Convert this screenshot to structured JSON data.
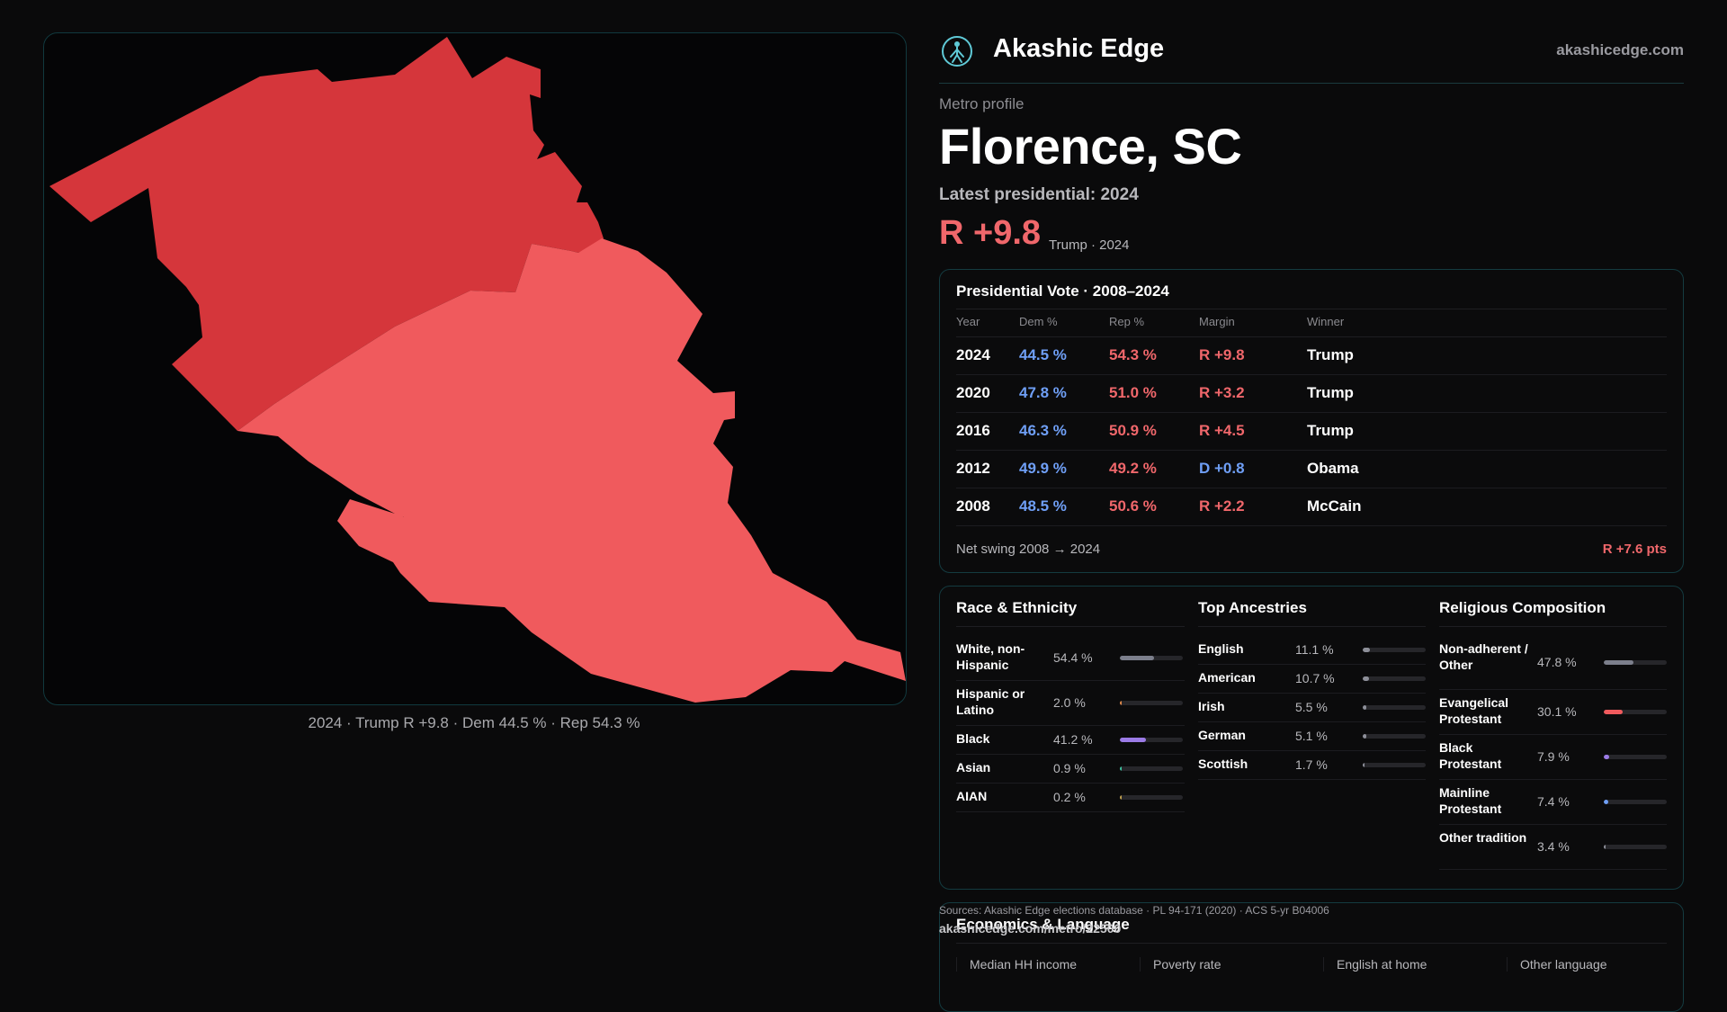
{
  "brand": {
    "name": "Akashic Edge",
    "url": "akashicedge.com",
    "icon": "hiking-figure-icon",
    "accent": "#5fc9d6"
  },
  "map": {
    "caption": "2024 · Trump R +9.8 · Dem 44.5 % · Rep 54.3 %",
    "colors": {
      "north_county": "#d5363b",
      "south_county": "#f05a5d",
      "background": "#050506"
    }
  },
  "profile": {
    "eyebrow": "Metro profile",
    "city": "Florence, SC",
    "latest_label": "Latest presidential: 2024",
    "margin": "R +9.8",
    "margin_sub": "Trump · 2024"
  },
  "vote": {
    "title": "Presidential Vote · 2008–2024",
    "headers": {
      "year": "Year",
      "dem": "Dem %",
      "rep": "Rep %",
      "margin": "Margin",
      "winner": "Winner"
    },
    "rows": [
      {
        "year": "2024",
        "dem": "44.5 %",
        "rep": "54.3 %",
        "margin": "R +9.8",
        "party": "R",
        "winner": "Trump"
      },
      {
        "year": "2020",
        "dem": "47.8 %",
        "rep": "51.0 %",
        "margin": "R +3.2",
        "party": "R",
        "winner": "Trump"
      },
      {
        "year": "2016",
        "dem": "46.3 %",
        "rep": "50.9 %",
        "margin": "R +4.5",
        "party": "R",
        "winner": "Trump"
      },
      {
        "year": "2012",
        "dem": "49.9 %",
        "rep": "49.2 %",
        "margin": "D +0.8",
        "party": "D",
        "winner": "Obama"
      },
      {
        "year": "2008",
        "dem": "48.5 %",
        "rep": "50.6 %",
        "margin": "R +2.2",
        "party": "R",
        "winner": "McCain"
      }
    ],
    "swing_label": "Net swing 2008 → 2024",
    "swing_value": "R +7.6 pts"
  },
  "race": {
    "title": "Race & Ethnicity",
    "items": [
      {
        "label": "White, non-Hispanic",
        "value": "54.4 %",
        "pct": 54.4,
        "color": "#7c7f8c"
      },
      {
        "label": "Hispanic or Latino",
        "value": "2.0 %",
        "pct": 2.0,
        "color": "#e0894a"
      },
      {
        "label": "Black",
        "value": "41.2 %",
        "pct": 41.2,
        "color": "#9b7be6"
      },
      {
        "label": "Asian",
        "value": "0.9 %",
        "pct": 0.9,
        "color": "#3fc2a0"
      },
      {
        "label": "AIAN",
        "value": "0.2 %",
        "pct": 0.2,
        "color": "#c0a050"
      }
    ]
  },
  "ancestry": {
    "title": "Top Ancestries",
    "items": [
      {
        "label": "English",
        "value": "11.1 %",
        "pct": 11.1
      },
      {
        "label": "American",
        "value": "10.7 %",
        "pct": 10.7
      },
      {
        "label": "Irish",
        "value": "5.5 %",
        "pct": 5.5
      },
      {
        "label": "German",
        "value": "5.1 %",
        "pct": 5.1
      },
      {
        "label": "Scottish",
        "value": "1.7 %",
        "pct": 1.7
      }
    ],
    "color": "#8d8f99"
  },
  "religion": {
    "title": "Religious Composition",
    "items": [
      {
        "label": "Non-adherent / Other",
        "value": "47.8 %",
        "pct": 47.8,
        "color": "#7c7f8c"
      },
      {
        "label": "Evangelical Protestant",
        "value": "30.1 %",
        "pct": 30.1,
        "color": "#f05a5d"
      },
      {
        "label": "Black Protestant",
        "value": "7.9 %",
        "pct": 7.9,
        "color": "#9b7be6"
      },
      {
        "label": "Mainline Protestant",
        "value": "7.4 %",
        "pct": 7.4,
        "color": "#6f9ff6"
      },
      {
        "label": "Other tradition",
        "value": "3.4 %",
        "pct": 3.4,
        "color": "#8d8f99"
      }
    ]
  },
  "economics": {
    "title": "Economics & Language",
    "columns": [
      "Median HH income",
      "Poverty rate",
      "English at home",
      "Other language"
    ]
  },
  "footer": {
    "sources": "Sources: Akashic Edge elections database · PL 94-171 (2020) · ACS 5-yr B04006",
    "url": "akashicedge.com/metro/22500"
  }
}
